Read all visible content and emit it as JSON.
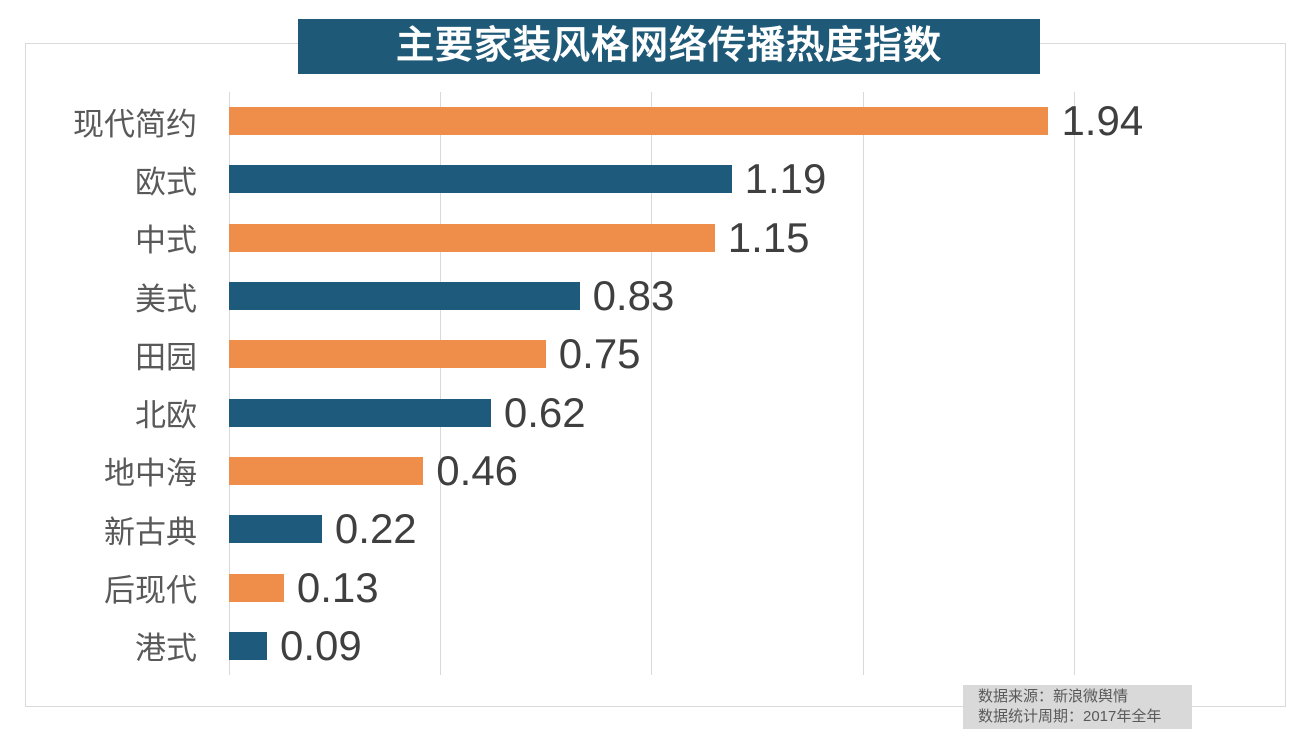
{
  "title": "主要家装风格网络传播热度指数",
  "colors": {
    "title_bg": "#1f5978",
    "bar_orange": "#ef8e4a",
    "bar_teal": "#1e5a7b",
    "grid": "#d9d9d9",
    "frame_border": "#d9d9d9",
    "category_label": "#595959",
    "value_label": "#3f3f3f",
    "source_bg": "#d9d9d9",
    "source_text": "#595959"
  },
  "source": {
    "line1": "数据来源：新浪微舆情",
    "line2": "数据统计周期：2017年全年"
  },
  "chart_data": {
    "type": "bar",
    "orientation": "horizontal",
    "title": "主要家装风格网络传播热度指数",
    "categories": [
      "现代简约",
      "欧式",
      "中式",
      "美式",
      "田园",
      "北欧",
      "地中海",
      "新古典",
      "后现代",
      "港式"
    ],
    "values": [
      1.94,
      1.19,
      1.15,
      0.83,
      0.75,
      0.62,
      0.46,
      0.22,
      0.13,
      0.09
    ],
    "value_labels": [
      "1.94",
      "1.19",
      "1.15",
      "0.83",
      "0.75",
      "0.62",
      "0.46",
      "0.22",
      "0.13",
      "0.09"
    ],
    "bar_colors_alternate": [
      "#ef8e4a",
      "#1e5a7b"
    ],
    "xlabel": "",
    "ylabel": "",
    "xlim": [
      0,
      2.5
    ],
    "gridline_interval": 0.5,
    "grid": "vertical-on",
    "legend": "none",
    "data_labels": "outside-end",
    "source_note": [
      "数据来源：新浪微舆情",
      "数据统计周期：2017年全年"
    ]
  }
}
